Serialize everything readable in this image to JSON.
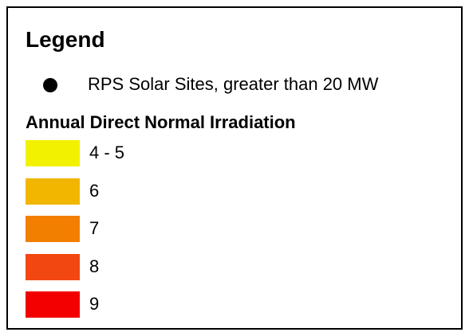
{
  "legend": {
    "title": "Legend",
    "point_layer": {
      "label": "RPS Solar Sites, greater than 20 MW",
      "color": "#000000"
    },
    "raster_layer": {
      "title": "Annual Direct Normal Irradiation",
      "classes": [
        {
          "label": "4 - 5",
          "color": "#f2f200"
        },
        {
          "label": "6",
          "color": "#f2b600"
        },
        {
          "label": "7",
          "color": "#f27f00"
        },
        {
          "label": "8",
          "color": "#f24710"
        },
        {
          "label": "9",
          "color": "#f20000"
        }
      ]
    }
  }
}
